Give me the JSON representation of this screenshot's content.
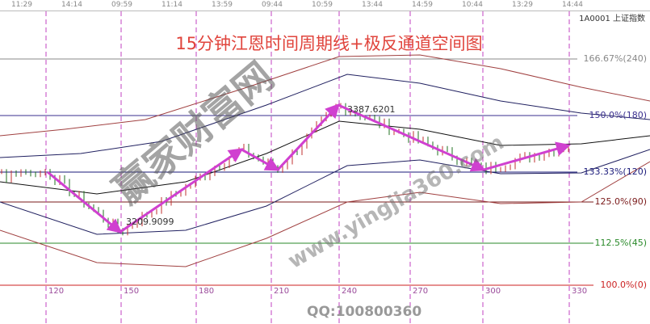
{
  "top_times": [
    "11:29",
    "14:14",
    "09:59",
    "11:14",
    "13:59",
    "09:44",
    "10:59",
    "13:44",
    "14:59",
    "10:44",
    "13:29",
    "14:44"
  ],
  "symbol": "1A0001 上证指数",
  "chart_data": {
    "type": "line",
    "title": "15分钟江恩时间周期线+极反通道空间图",
    "x_ticks": [
      120,
      150,
      180,
      210,
      240,
      270,
      300,
      330
    ],
    "levels": [
      {
        "label": "166.67%(240)",
        "color": "#888888"
      },
      {
        "label": "150.0%(180)",
        "color": "#3a2f8f"
      },
      {
        "label": "133.33%(120)",
        "color": "#1a1a7a"
      },
      {
        "label": "125.0%(90)",
        "color": "#7a1a1a"
      },
      {
        "label": "112.5%(45)",
        "color": "#2a8a2a"
      },
      {
        "label": "100.0%(0)",
        "color": "#cc2222"
      }
    ],
    "pivots": {
      "x": [
        119,
        149,
        199,
        214,
        239,
        299,
        334
      ],
      "y": [
        3293.7,
        3209.91,
        3325.4,
        3297.0,
        3387.62,
        3297.0,
        3331.0
      ]
    },
    "price_labels": [
      "3209.9099",
      "3387.6201"
    ],
    "arrow_color": "#d040d0"
  },
  "watermark": {
    "brand": "赢家财富网",
    "url": "www.yingjia360.com"
  },
  "qq": "QQ:100800360"
}
